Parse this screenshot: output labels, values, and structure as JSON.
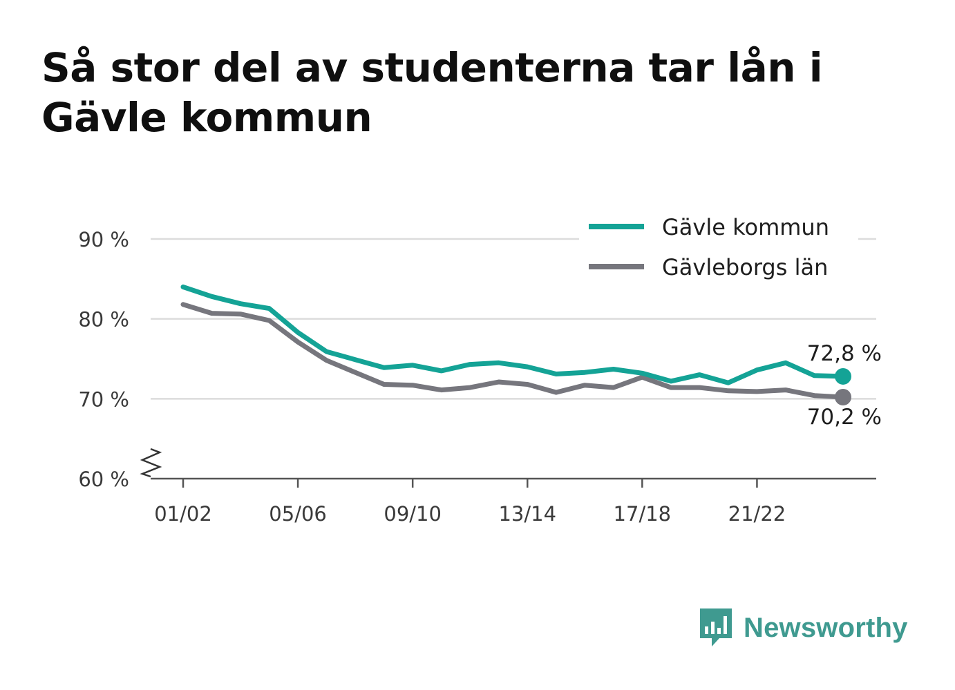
{
  "title": "Så stor del av studenterna tar lån i Gävle kommun",
  "brand": {
    "name": "Newsworthy",
    "icon": "newsworthy-logo-icon",
    "color": "#3f9a90"
  },
  "chart_data": {
    "type": "line",
    "title": "Så stor del av studenterna tar lån i Gävle kommun",
    "xlabel": "",
    "ylabel": "",
    "ylim": [
      60,
      90
    ],
    "y_ticks": [
      60,
      70,
      80,
      90
    ],
    "y_tick_labels": [
      "60 %",
      "70 %",
      "80 %",
      "90 %"
    ],
    "axis_break": true,
    "grid": true,
    "legend": "top-right",
    "categories": [
      "01/02",
      "02/03",
      "03/04",
      "04/05",
      "05/06",
      "06/07",
      "07/08",
      "08/09",
      "09/10",
      "10/11",
      "11/12",
      "12/13",
      "13/14",
      "14/15",
      "15/16",
      "16/17",
      "17/18",
      "18/19",
      "19/20",
      "20/21",
      "21/22",
      "22/23",
      "23/24",
      "24/25"
    ],
    "x_tick_labels": [
      "01/02",
      "05/06",
      "09/10",
      "13/14",
      "17/18",
      "21/22"
    ],
    "x_tick_index": [
      0,
      4,
      8,
      12,
      16,
      20
    ],
    "series": [
      {
        "name": "Gävle kommun",
        "color": "#14a396",
        "values": [
          84.0,
          82.8,
          81.9,
          81.3,
          78.3,
          75.9,
          74.9,
          73.9,
          74.2,
          73.5,
          74.3,
          74.5,
          74.0,
          73.1,
          73.3,
          73.7,
          73.2,
          72.2,
          73.0,
          72.0,
          73.6,
          74.5,
          72.9,
          72.8
        ],
        "end_label": "72,8 %"
      },
      {
        "name": "Gävleborgs län",
        "color": "#76767d",
        "values": [
          81.8,
          80.7,
          80.6,
          79.8,
          77.1,
          74.8,
          73.3,
          71.8,
          71.7,
          71.1,
          71.4,
          72.1,
          71.8,
          70.8,
          71.7,
          71.4,
          72.7,
          71.4,
          71.4,
          71.0,
          70.9,
          71.1,
          70.4,
          70.2
        ],
        "end_label": "70,2 %"
      }
    ]
  }
}
